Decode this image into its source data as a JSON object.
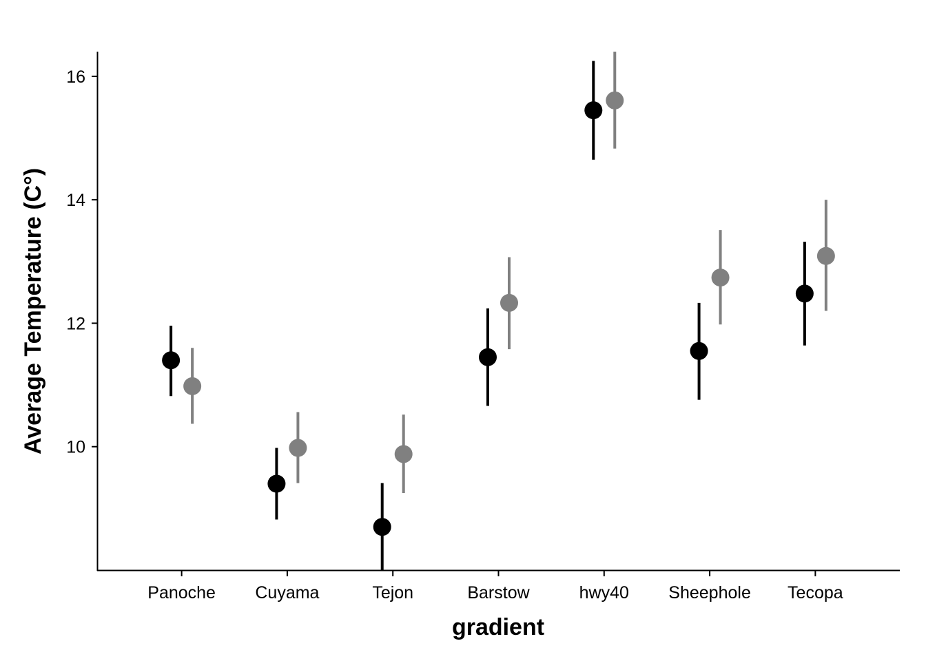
{
  "chart_data": {
    "type": "scatter",
    "subtype": "pointrange",
    "title": "",
    "xlabel": "gradient",
    "ylabel": "Average Temperature (C°)",
    "categories": [
      "Panoche",
      "Cuyama",
      "Tejon",
      "Barstow",
      "hwy40",
      "Sheephole",
      "Tecopa"
    ],
    "ylim": [
      8.0,
      16.4
    ],
    "yticks": [
      10,
      12,
      14,
      16
    ],
    "legend": "none",
    "grid": false,
    "series": [
      {
        "color": "#000000",
        "values": [
          11.4,
          9.4,
          8.7,
          11.45,
          15.45,
          11.55,
          12.48
        ],
        "lower": [
          10.82,
          8.82,
          7.98,
          10.66,
          14.65,
          10.76,
          11.64
        ],
        "upper": [
          11.96,
          9.98,
          9.41,
          12.24,
          16.25,
          12.33,
          13.32
        ]
      },
      {
        "color": "#808080",
        "values": [
          10.98,
          9.98,
          9.88,
          12.33,
          15.61,
          12.74,
          13.09
        ],
        "lower": [
          10.37,
          9.41,
          9.25,
          11.58,
          14.83,
          11.98,
          12.2
        ],
        "upper": [
          11.6,
          10.56,
          10.52,
          13.07,
          16.4,
          13.51,
          14.0
        ]
      }
    ]
  }
}
